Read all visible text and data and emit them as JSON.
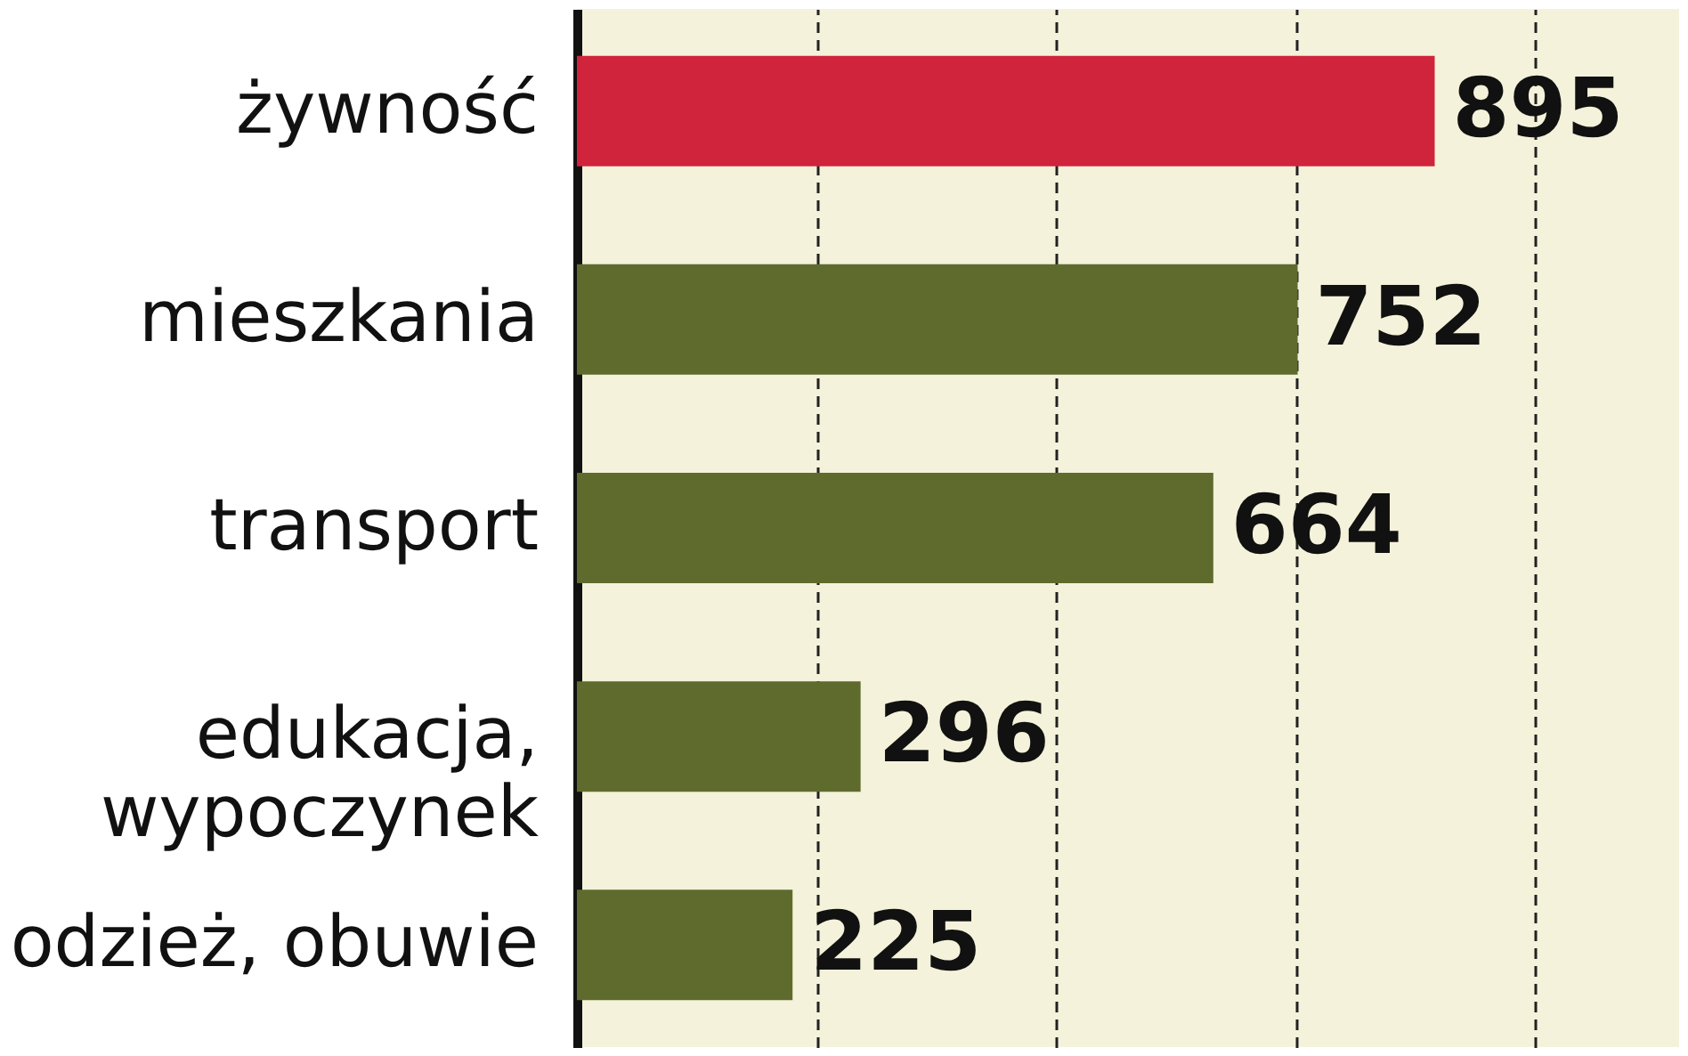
{
  "chart_data": {
    "type": "bar",
    "orientation": "horizontal",
    "categories": [
      "żywność",
      "mieszkania",
      "transport",
      "edukacja,\nwypoczynek",
      "odzież, obuwie"
    ],
    "values": [
      895,
      752,
      664,
      296,
      225
    ],
    "colors": [
      "#d0243c",
      "#5f6b2c",
      "#5f6b2c",
      "#5f6b2c",
      "#5f6b2c"
    ],
    "xlim": [
      0,
      1150
    ],
    "xticks": [
      {
        "value": 250,
        "label": null
      },
      {
        "value": 500,
        "label": null
      },
      {
        "value": 750,
        "label": null
      },
      {
        "value": 1000,
        "label": null
      }
    ],
    "grid": "x",
    "data_labels": true,
    "tick_labels": "y"
  }
}
